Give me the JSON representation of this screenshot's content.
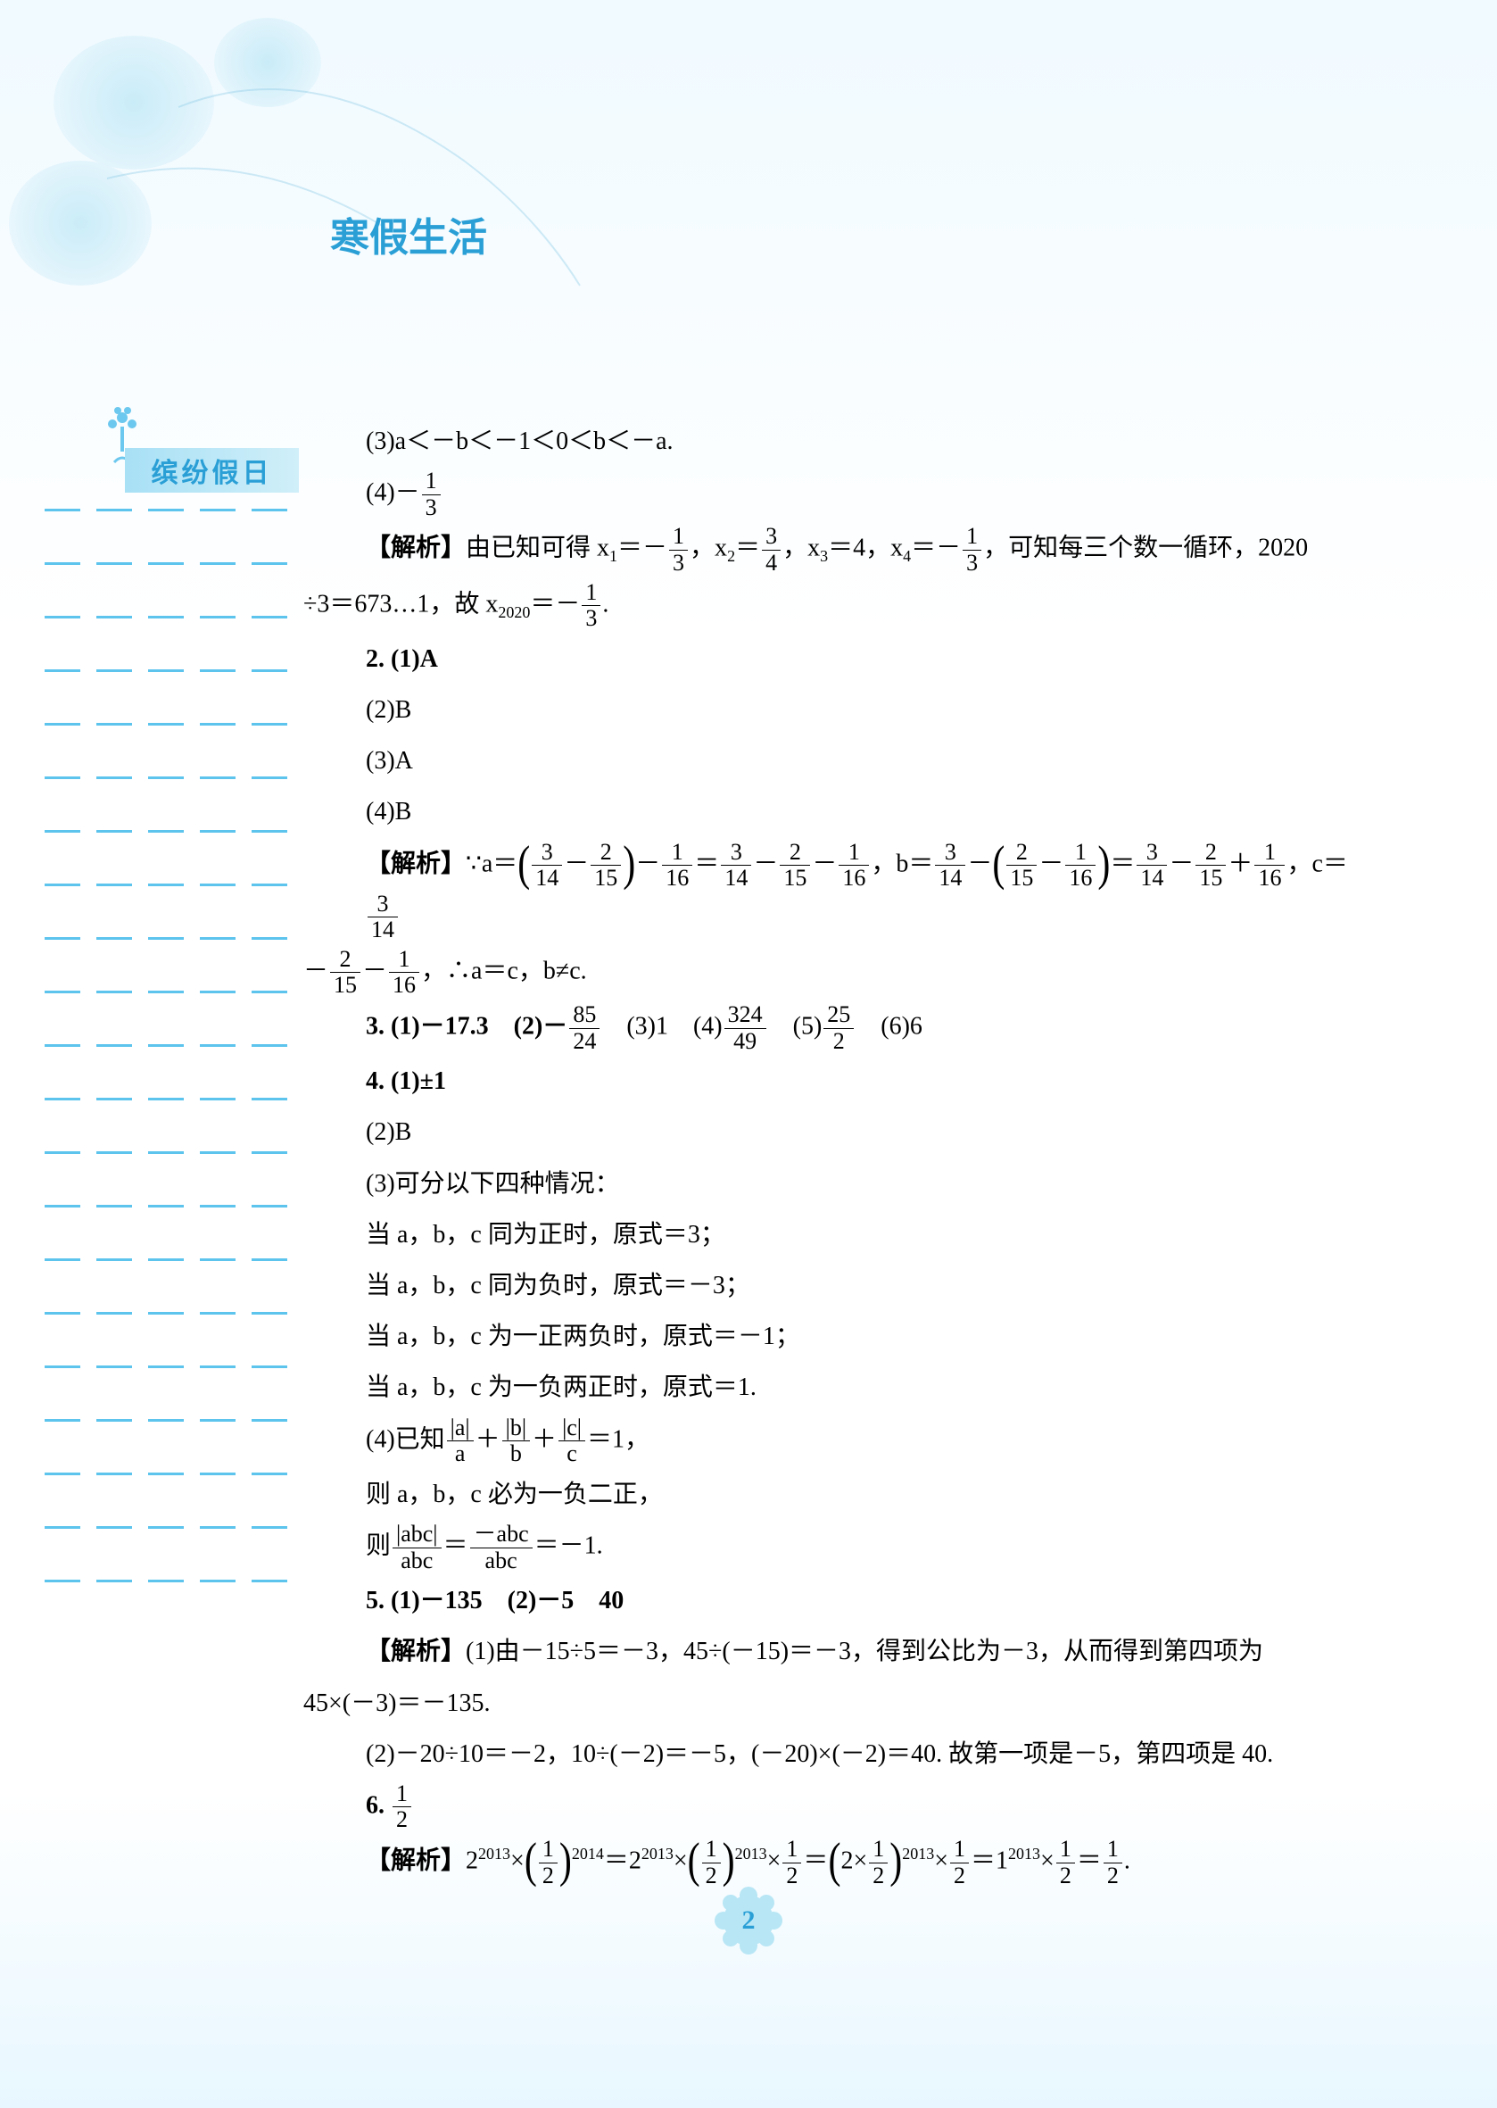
{
  "page": {
    "title": "寒假生活",
    "sidebar_badge": "缤纷假日",
    "page_number": "2",
    "underline_rows": 21,
    "dashes_per_row": 5,
    "colors": {
      "accent": "#2a9fd6",
      "light_blue": "#b8e6f5",
      "badge_gradient_start": "#a8e0f5",
      "badge_gradient_end": "#d0eff9",
      "underline": "#5cc4ed",
      "text": "#000000"
    }
  },
  "content": {
    "l_3": "(3)a＜－b＜－1＜0＜b＜－a.",
    "l_4a": "(4)－",
    "l_4_frac": {
      "n": "1",
      "d": "3"
    },
    "jiexi_label": "【解析】",
    "l_jiexi1_a": "由已知可得 x",
    "l_jiexi1_b": "＝－",
    "f_1_3": {
      "n": "1",
      "d": "3"
    },
    "l_jiexi1_c": "，x",
    "l_jiexi1_d": "＝",
    "f_3_4": {
      "n": "3",
      "d": "4"
    },
    "l_jiexi1_e": "，x",
    "l_jiexi1_f": "＝4，x",
    "l_jiexi1_g": "＝－",
    "l_jiexi1_h": "，可知每三个数一循环，2020",
    "l_jiexi1_line2_a": "÷3＝673…1，故 x",
    "l_jiexi1_line2_b": "＝－",
    "l_jiexi1_line2_c": ".",
    "sub_1": "1",
    "sub_2": "2",
    "sub_3": "3",
    "sub_4": "4",
    "sub_2020": "2020",
    "l_2_1": "2. (1)A",
    "l_2_2": "(2)B",
    "l_2_3": "(3)A",
    "l_2_4": "(4)B",
    "jiexi2_a": "∵a＝",
    "f_3_14": {
      "n": "3",
      "d": "14"
    },
    "f_2_15": {
      "n": "2",
      "d": "15"
    },
    "f_1_16": {
      "n": "1",
      "d": "16"
    },
    "jiexi2_b": "－",
    "jiexi2_c": "＝",
    "jiexi2_d": "，b＝",
    "jiexi2_e": "＋",
    "jiexi2_f": "，c＝",
    "jiexi2_line2_a": "，∴a＝c，b≠c.",
    "l_3_1a": "3. (1)－17.3　(2)－",
    "f_85_24": {
      "n": "85",
      "d": "24"
    },
    "l_3_1b": "　(3)1　(4)",
    "f_324_49": {
      "n": "324",
      "d": "49"
    },
    "l_3_1c": "　(5)",
    "f_25_2": {
      "n": "25",
      "d": "2"
    },
    "l_3_1d": "　(6)6",
    "l_4_1": "4. (1)±1",
    "l_4_2": "(2)B",
    "l_4_3": "(3)可分以下四种情况：",
    "l_4_3a": "当 a，b，c 同为正时，原式＝3；",
    "l_4_3b": "当 a，b，c 同为负时，原式＝－3；",
    "l_4_3c": "当 a，b，c 为一正两负时，原式＝－1；",
    "l_4_3d": "当 a，b，c 为一负两正时，原式＝1.",
    "l_4_4a": "(4)已知",
    "f_a_a": {
      "n": "|a|",
      "d": "a"
    },
    "f_b_b": {
      "n": "|b|",
      "d": "b"
    },
    "f_c_c": {
      "n": "|c|",
      "d": "c"
    },
    "l_4_4b": "＋",
    "l_4_4c": "＝1，",
    "l_4_5": "则 a，b，c 必为一负二正，",
    "l_4_6a": "则",
    "f_abc1": {
      "n": "|abc|",
      "d": "abc"
    },
    "f_abc2": {
      "n": "－abc",
      "d": "abc"
    },
    "l_4_6b": "＝",
    "l_4_6c": "＝－1.",
    "l_5_1": "5. (1)－135　(2)－5　40",
    "jiexi5_a": "(1)由－15÷5＝－3，45÷(－15)＝－3，得到公比为－3，从而得到第四项为",
    "jiexi5_b": "45×(－3)＝－135.",
    "jiexi5_c": "(2)－20÷10＝－2，10÷(－2)＝－5，(－20)×(－2)＝40. 故第一项是－5，第四项是 40.",
    "l_6_a": "6. ",
    "f_1_2": {
      "n": "1",
      "d": "2"
    },
    "jiexi6_a": "2",
    "sup_2013": "2013",
    "sup_2014": "2014",
    "jiexi6_b": "×",
    "jiexi6_c": "＝2",
    "jiexi6_d": "×",
    "jiexi6_e": "＝",
    "jiexi6_f": "2×",
    "jiexi6_g": "＝1",
    "jiexi6_h": "."
  }
}
